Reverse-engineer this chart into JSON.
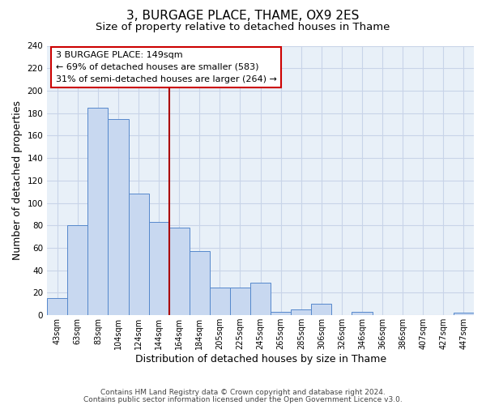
{
  "title": "3, BURGAGE PLACE, THAME, OX9 2ES",
  "subtitle": "Size of property relative to detached houses in Thame",
  "xlabel": "Distribution of detached houses by size in Thame",
  "ylabel": "Number of detached properties",
  "bin_labels": [
    "43sqm",
    "63sqm",
    "83sqm",
    "104sqm",
    "124sqm",
    "144sqm",
    "164sqm",
    "184sqm",
    "205sqm",
    "225sqm",
    "245sqm",
    "265sqm",
    "285sqm",
    "306sqm",
    "326sqm",
    "346sqm",
    "366sqm",
    "386sqm",
    "407sqm",
    "427sqm",
    "447sqm"
  ],
  "bar_heights": [
    15,
    80,
    185,
    175,
    108,
    83,
    78,
    57,
    25,
    25,
    29,
    3,
    5,
    10,
    0,
    3,
    0,
    0,
    0,
    0,
    2
  ],
  "bar_color": "#c8d8f0",
  "bar_edge_color": "#5588cc",
  "vline_x_index": 5.5,
  "vline_color": "#aa0000",
  "annotation_line1": "3 BURGAGE PLACE: 149sqm",
  "annotation_line2": "← 69% of detached houses are smaller (583)",
  "annotation_line3": "31% of semi-detached houses are larger (264) →",
  "annotation_box_edgecolor": "#cc0000",
  "annotation_box_facecolor": "#ffffff",
  "ylim": [
    0,
    240
  ],
  "yticks": [
    0,
    20,
    40,
    60,
    80,
    100,
    120,
    140,
    160,
    180,
    200,
    220,
    240
  ],
  "grid_color": "#c8d4e8",
  "bg_color": "#e8f0f8",
  "footer_line1": "Contains HM Land Registry data © Crown copyright and database right 2024.",
  "footer_line2": "Contains public sector information licensed under the Open Government Licence v3.0.",
  "title_fontsize": 11,
  "subtitle_fontsize": 9.5,
  "xlabel_fontsize": 9,
  "ylabel_fontsize": 9,
  "annotation_fontsize": 8,
  "tick_fontsize": 7,
  "footer_fontsize": 6.5
}
